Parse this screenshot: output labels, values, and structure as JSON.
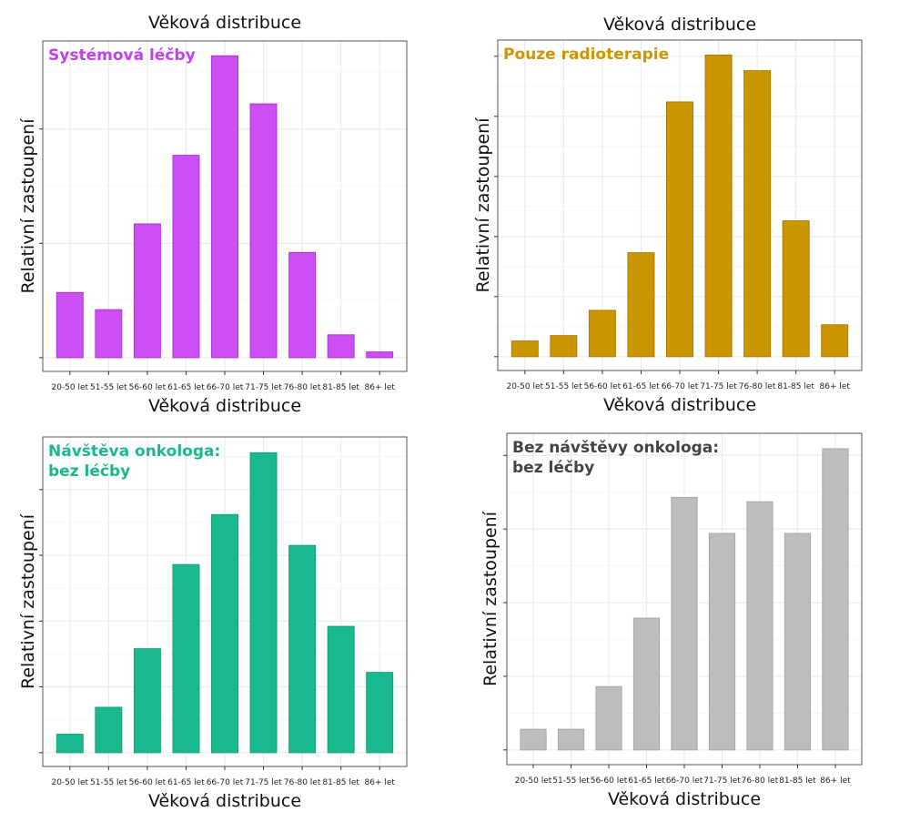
{
  "chart_data": [
    {
      "type": "bar",
      "label": "Systémová léčby",
      "title": "Věková distribuce",
      "xlabel": "Věková distribuce",
      "ylabel": "Relativní zastoupení",
      "categories": [
        "20-50 let",
        "51-55 let",
        "56-60 let",
        "61-65 let",
        "66-70 let",
        "71-75 let",
        "76-80 let",
        "81-85 let",
        "86+ let"
      ],
      "values": [
        0.57,
        0.42,
        1.17,
        1.77,
        2.64,
        2.22,
        0.92,
        0.2,
        0.05
      ],
      "ylim": [
        -0.12,
        2.77
      ],
      "yticks": [
        0,
        1,
        2
      ],
      "grid": true,
      "color": "#cc4ff5",
      "stroke": "#b030e0",
      "label_color": "#c040f0"
    },
    {
      "type": "bar",
      "label": "Pouze radioterapie",
      "title": "Věková distribuce",
      "xlabel": "Věková distribuce",
      "ylabel": "Relativní zastoupení",
      "categories": [
        "20-50 let",
        "51-55 let",
        "56-60 let",
        "61-65 let",
        "66-70 let",
        "71-75 let",
        "76-80 let",
        "81-85 let",
        "86+ let"
      ],
      "values": [
        0.26,
        0.35,
        0.77,
        1.73,
        4.24,
        5.02,
        4.76,
        2.26,
        0.53
      ],
      "ylim": [
        -0.23,
        5.27
      ],
      "yticks": [
        0,
        1,
        2,
        3,
        4,
        5
      ],
      "grid": true,
      "color": "#cc9600",
      "stroke": "#a87a00",
      "label_color": "#cc9600"
    },
    {
      "type": "bar",
      "label": "Návštěva onkologa:\nbez léčby",
      "title": "",
      "xlabel": "Věková distribuce",
      "ylabel": "Relativní zastoupení",
      "categories": [
        "20-50 let",
        "51-55 let",
        "56-60 let",
        "61-65 let",
        "66-70 let",
        "71-75 let",
        "76-80 let",
        "81-85 let",
        "86+ let"
      ],
      "values": [
        0.28,
        0.69,
        1.58,
        2.86,
        3.62,
        4.56,
        3.15,
        1.92,
        1.22
      ],
      "ylim": [
        -0.21,
        4.8
      ],
      "yticks": [
        0,
        1,
        2,
        3,
        4
      ],
      "grid": true,
      "color": "#1ab88e",
      "stroke": "#14a07a",
      "label_color": "#1ab88e"
    },
    {
      "type": "bar",
      "label": "Bez návštěvy onkologa:\nbez léčby",
      "title": "",
      "xlabel": "Věková distribuce",
      "ylabel": "Relativní zastoupení",
      "categories": [
        "20-50 let",
        "51-55 let",
        "56-60 let",
        "61-65 let",
        "66-70 let",
        "71-75 let",
        "76-80 let",
        "81-85 let",
        "86+ let"
      ],
      "values": [
        0.28,
        0.28,
        0.86,
        1.79,
        3.43,
        2.94,
        3.37,
        2.94,
        4.09
      ],
      "ylim": [
        -0.2,
        4.3
      ],
      "yticks": [
        0,
        1,
        2,
        3,
        4
      ],
      "grid": true,
      "color": "#bdbdbd",
      "stroke": "#a8a8a8",
      "label_color": "#444444"
    }
  ]
}
